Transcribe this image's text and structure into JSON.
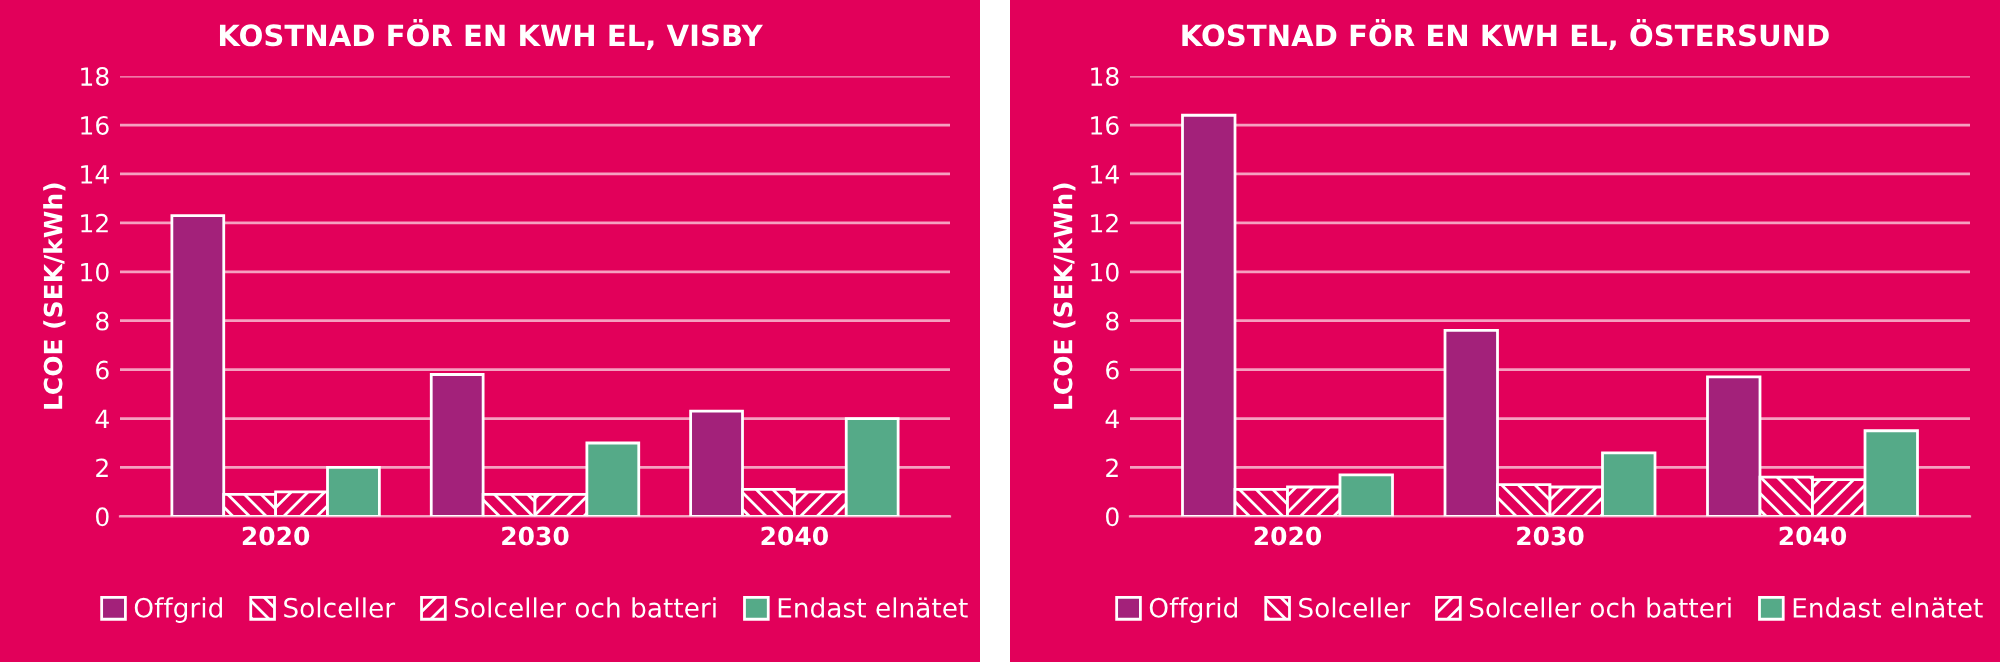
{
  "chart_data": [
    {
      "type": "bar",
      "title": "KOSTNAD FÖR EN KWH EL, VISBY",
      "ylabel": "LCOE (SEK/kWh)",
      "categories": [
        "2020",
        "2030",
        "2040"
      ],
      "ylim": [
        0,
        18
      ],
      "yticks": [
        0,
        2,
        4,
        6,
        8,
        10,
        12,
        14,
        16,
        18
      ],
      "grid": "y",
      "legend": "bottom",
      "series": [
        {
          "name": "Offgrid",
          "color": "#a3217a",
          "values": [
            12.3,
            5.8,
            4.3
          ]
        },
        {
          "name": "Solceller",
          "color": "#ffffff",
          "values": [
            0.9,
            0.9,
            1.1
          ]
        },
        {
          "name": "Solceller och batteri",
          "color": "#ffffff",
          "values": [
            1.0,
            0.9,
            1.0
          ]
        },
        {
          "name": "Endast elnätet",
          "color": "#55aa88",
          "values": [
            2.0,
            3.0,
            4.0
          ]
        }
      ]
    },
    {
      "type": "bar",
      "title": "KOSTNAD FÖR EN KWH EL, ÖSTERSUND",
      "ylabel": "LCOE (SEK/kWh)",
      "categories": [
        "2020",
        "2030",
        "2040"
      ],
      "ylim": [
        0,
        18
      ],
      "yticks": [
        0,
        2,
        4,
        6,
        8,
        10,
        12,
        14,
        16,
        18
      ],
      "grid": "y",
      "legend": "bottom",
      "series": [
        {
          "name": "Offgrid",
          "color": "#a3217a",
          "values": [
            16.4,
            7.6,
            5.7
          ]
        },
        {
          "name": "Solceller",
          "color": "#ffffff",
          "values": [
            1.1,
            1.3,
            1.6
          ]
        },
        {
          "name": "Solceller och batteri",
          "color": "#ffffff",
          "values": [
            1.2,
            1.2,
            1.5
          ]
        },
        {
          "name": "Endast elnätet",
          "color": "#55aa88",
          "values": [
            1.7,
            2.6,
            3.5
          ]
        }
      ]
    }
  ]
}
